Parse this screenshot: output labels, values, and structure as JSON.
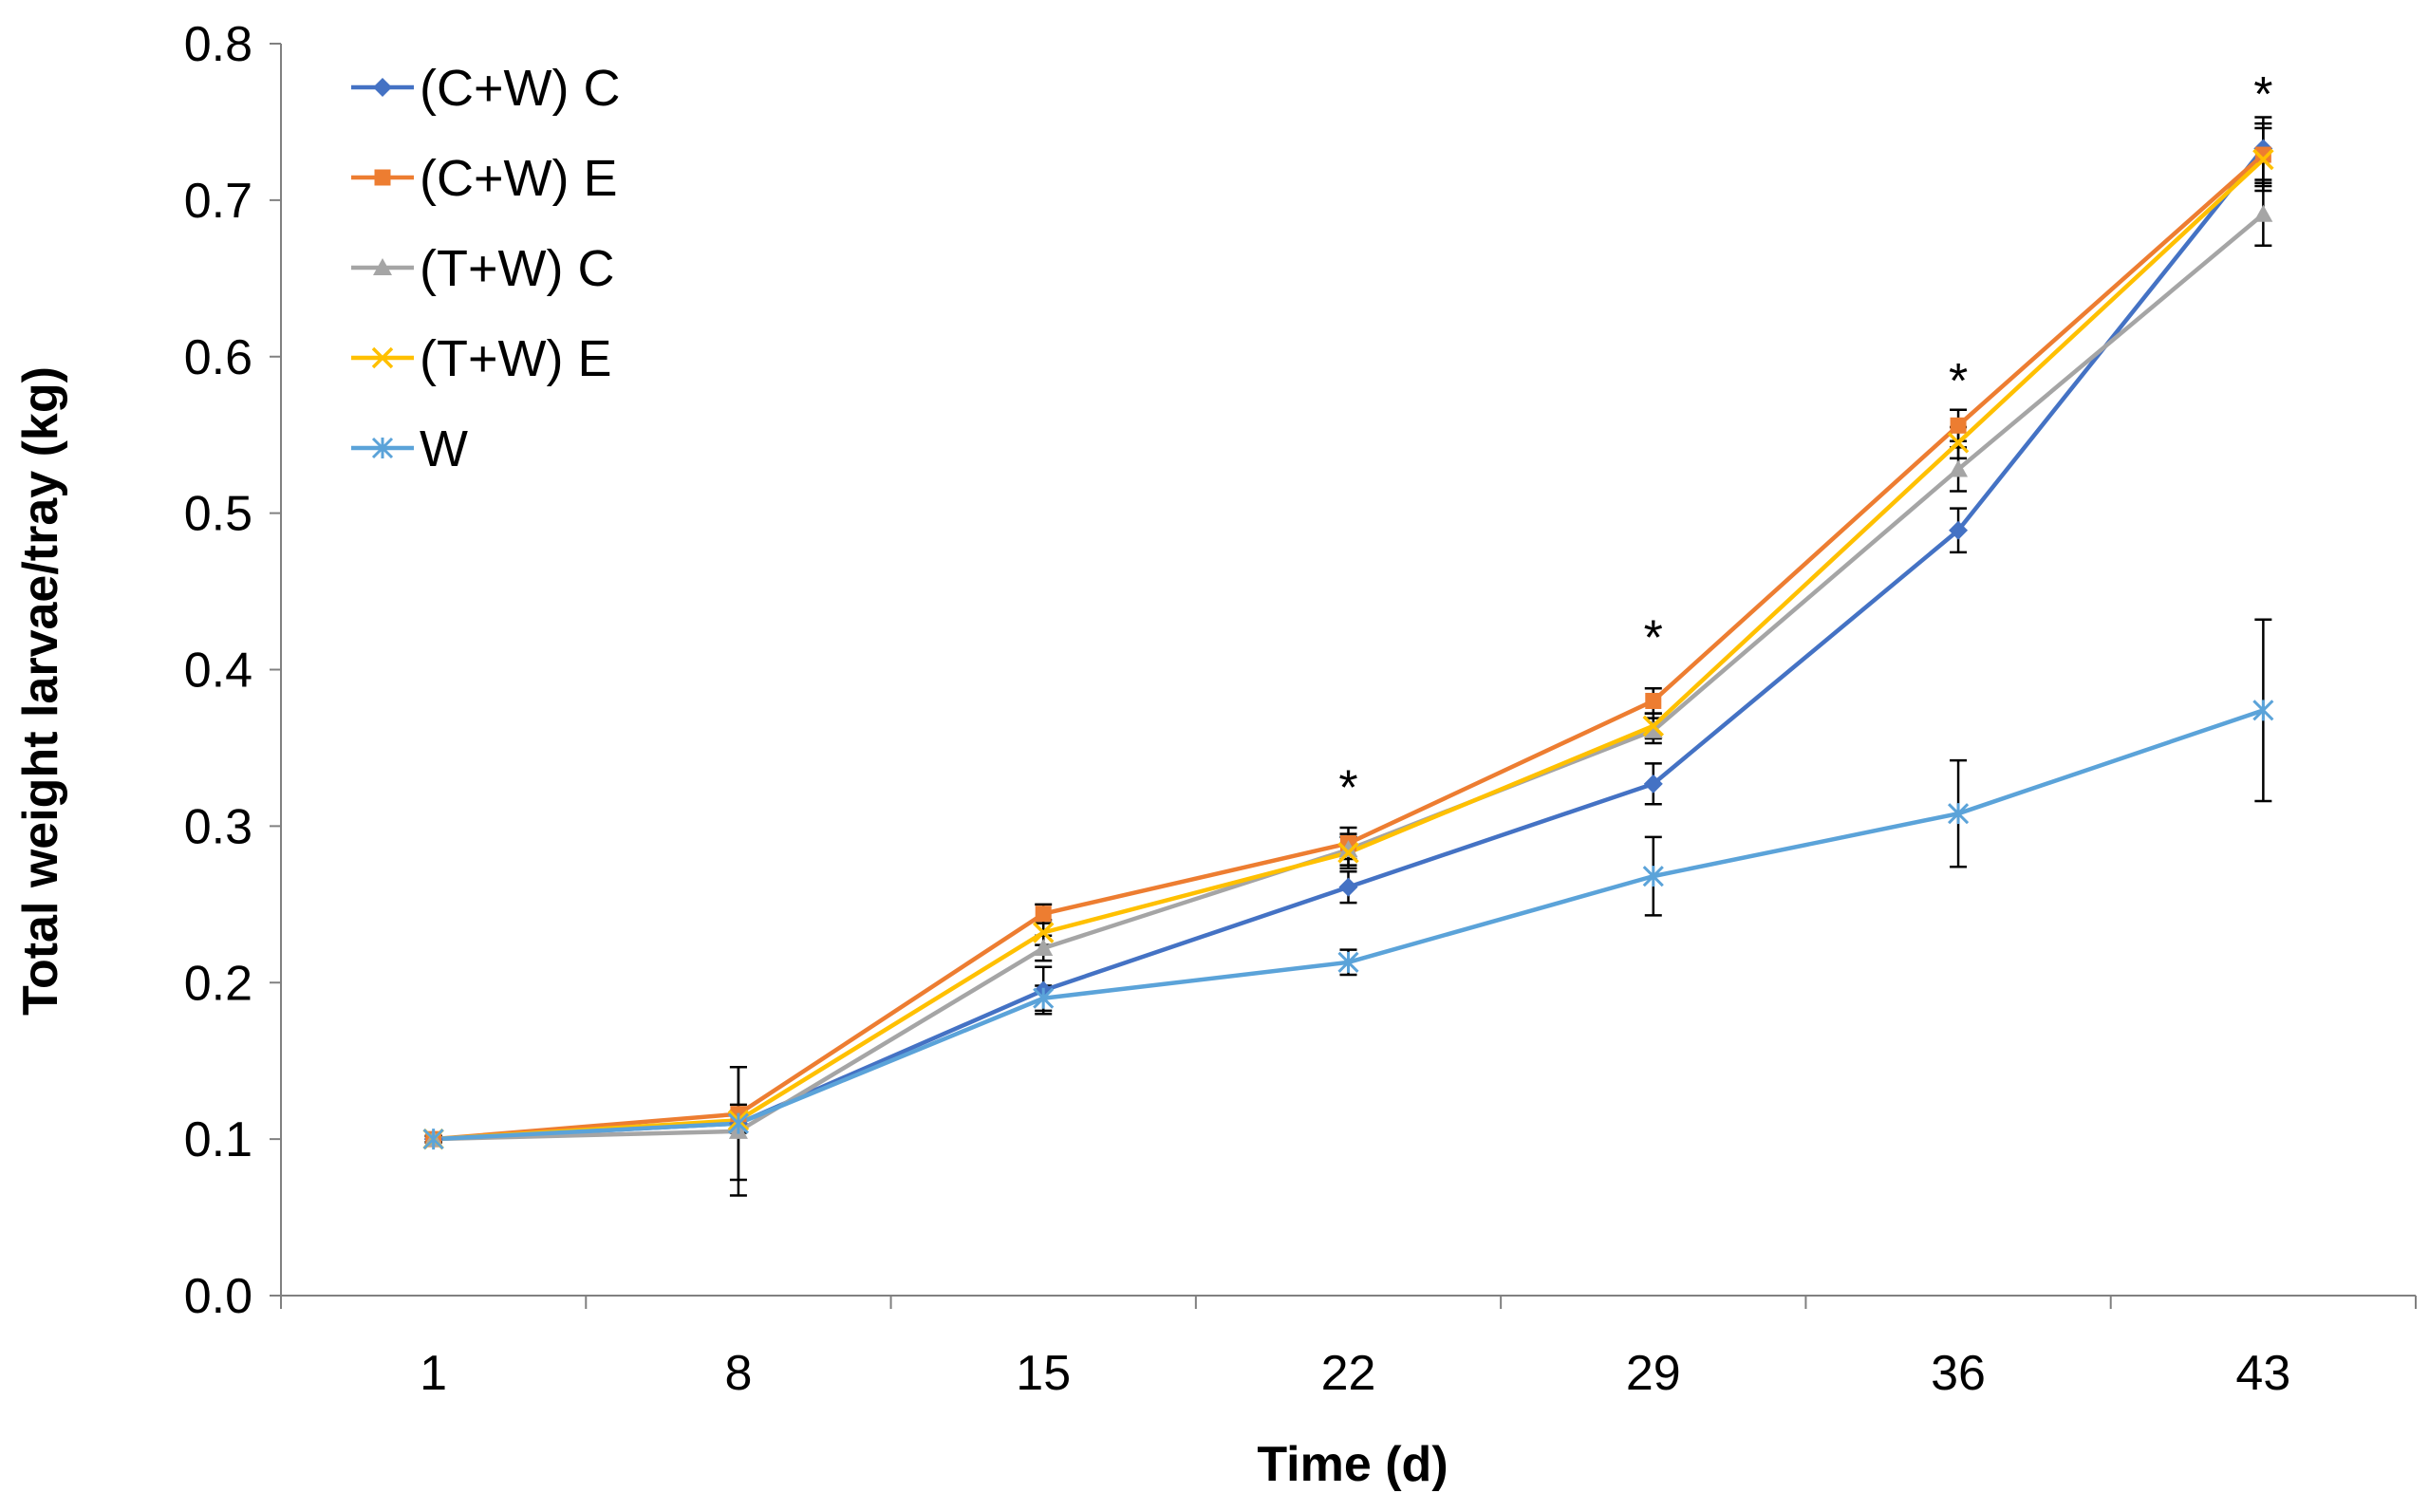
{
  "chart_data": {
    "type": "line",
    "title": "",
    "xlabel": "Time (d)",
    "ylabel": "Total weight larvae/tray (kg)",
    "categories": [
      "1",
      "8",
      "15",
      "22",
      "29",
      "36",
      "43"
    ],
    "ylim": [
      0,
      0.8
    ],
    "yticks": [
      "0.0",
      "0.1",
      "0.2",
      "0.3",
      "0.4",
      "0.5",
      "0.6",
      "0.7",
      "0.8"
    ],
    "grid": false,
    "legend_position": "top-left",
    "series": [
      {
        "name": "(C+W) C",
        "color": "#4472C4",
        "marker": "diamond",
        "values": [
          0.1,
          0.11,
          0.195,
          0.261,
          0.327,
          0.489,
          0.733
        ],
        "errors": [
          0.002,
          0.006,
          0.015,
          0.01,
          0.013,
          0.014,
          0.02
        ]
      },
      {
        "name": "(C+W) E",
        "color": "#ED7D31",
        "marker": "square",
        "values": [
          0.1,
          0.116,
          0.244,
          0.289,
          0.38,
          0.556,
          0.729
        ],
        "errors": [
          0.002,
          0.006,
          0.006,
          0.01,
          0.008,
          0.01,
          0.02
        ]
      },
      {
        "name": "(T+W) C",
        "color": "#A5A5A5",
        "marker": "triangle",
        "values": [
          0.1,
          0.105,
          0.222,
          0.285,
          0.361,
          0.528,
          0.691
        ],
        "errors": [
          0.002,
          0.041,
          0.008,
          0.01,
          0.008,
          0.014,
          0.02
        ]
      },
      {
        "name": "(T+W) E",
        "color": "#FFC000",
        "marker": "x",
        "values": [
          0.1,
          0.112,
          0.232,
          0.283,
          0.364,
          0.545,
          0.726
        ],
        "errors": [
          0.002,
          0.006,
          0.008,
          0.01,
          0.008,
          0.01,
          0.02
        ]
      },
      {
        "name": "W",
        "color": "#5BA3D9",
        "marker": "star",
        "values": [
          0.1,
          0.11,
          0.19,
          0.213,
          0.268,
          0.308,
          0.374
        ],
        "errors": [
          0.002,
          0.036,
          0.008,
          0.008,
          0.025,
          0.034,
          0.058
        ]
      }
    ],
    "annotations": [
      {
        "text": "*",
        "category": "22",
        "y": 0.332
      },
      {
        "text": "*",
        "category": "29",
        "y": 0.428
      },
      {
        "text": "*",
        "category": "36",
        "y": 0.592
      },
      {
        "text": "*",
        "category": "43",
        "y": 0.775
      }
    ]
  }
}
